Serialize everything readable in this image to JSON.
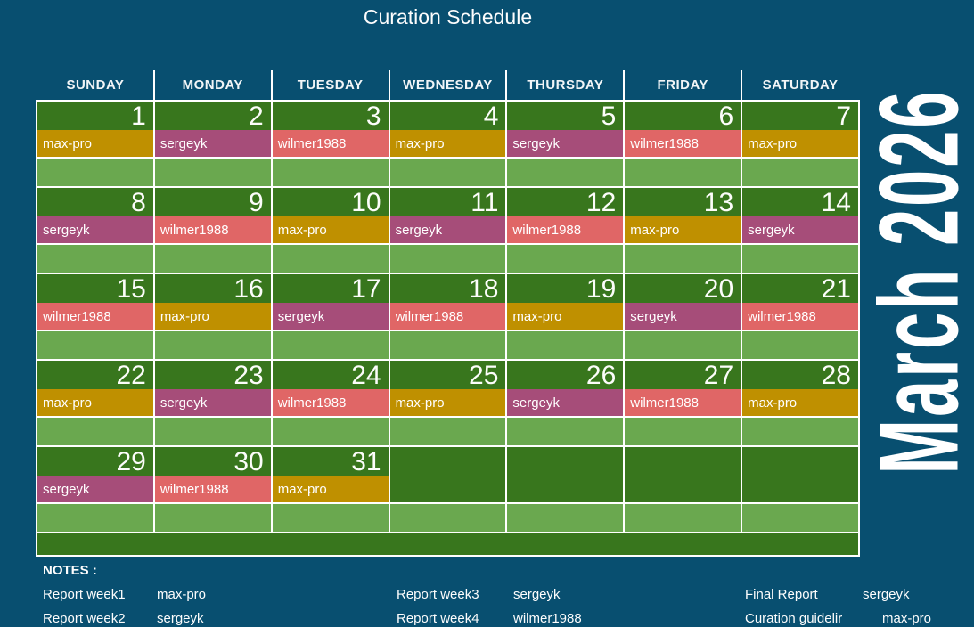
{
  "page": {
    "background": "#084f70",
    "title": "Curation Schedule"
  },
  "month_label": "March 2026",
  "weekday_headers": [
    "SUNDAY",
    "MONDAY",
    "TUESDAY",
    "WEDNESDAY",
    "THURSDAY",
    "FRIDAY",
    "SATURDAY"
  ],
  "people_colors": {
    "max-pro": "#bf9000",
    "sergeyk": "#a64d79",
    "wilmer1988": "#e06666"
  },
  "calendar_colors": {
    "day_cell": "#38761d",
    "empty_row": "#6aa84f",
    "grid_line": "#ffffff"
  },
  "weeks": [
    [
      {
        "day": "1",
        "assignee": "max-pro"
      },
      {
        "day": "2",
        "assignee": "sergeyk"
      },
      {
        "day": "3",
        "assignee": "wilmer1988"
      },
      {
        "day": "4",
        "assignee": "max-pro"
      },
      {
        "day": "5",
        "assignee": "sergeyk"
      },
      {
        "day": "6",
        "assignee": "wilmer1988"
      },
      {
        "day": "7",
        "assignee": "max-pro"
      }
    ],
    [
      {
        "day": "8",
        "assignee": "sergeyk"
      },
      {
        "day": "9",
        "assignee": "wilmer1988"
      },
      {
        "day": "10",
        "assignee": "max-pro"
      },
      {
        "day": "11",
        "assignee": "sergeyk"
      },
      {
        "day": "12",
        "assignee": "wilmer1988"
      },
      {
        "day": "13",
        "assignee": "max-pro"
      },
      {
        "day": "14",
        "assignee": "sergeyk"
      }
    ],
    [
      {
        "day": "15",
        "assignee": "wilmer1988"
      },
      {
        "day": "16",
        "assignee": "max-pro"
      },
      {
        "day": "17",
        "assignee": "sergeyk"
      },
      {
        "day": "18",
        "assignee": "wilmer1988"
      },
      {
        "day": "19",
        "assignee": "max-pro"
      },
      {
        "day": "20",
        "assignee": "sergeyk"
      },
      {
        "day": "21",
        "assignee": "wilmer1988"
      }
    ],
    [
      {
        "day": "22",
        "assignee": "max-pro"
      },
      {
        "day": "23",
        "assignee": "sergeyk"
      },
      {
        "day": "24",
        "assignee": "wilmer1988"
      },
      {
        "day": "25",
        "assignee": "max-pro"
      },
      {
        "day": "26",
        "assignee": "sergeyk"
      },
      {
        "day": "27",
        "assignee": "wilmer1988"
      },
      {
        "day": "28",
        "assignee": "max-pro"
      }
    ],
    [
      {
        "day": "29",
        "assignee": "sergeyk"
      },
      {
        "day": "30",
        "assignee": "wilmer1988"
      },
      {
        "day": "31",
        "assignee": "max-pro"
      },
      null,
      null,
      null,
      null
    ]
  ],
  "notes": {
    "heading": "NOTES :",
    "items": [
      {
        "label": "Report week1",
        "value": "max-pro"
      },
      {
        "label": "Report week2",
        "value": "sergeyk"
      },
      {
        "label": "Report week3",
        "value": "sergeyk"
      },
      {
        "label": "Report week4",
        "value": "wilmer1988"
      },
      {
        "label": "Final Report",
        "value": "sergeyk"
      },
      {
        "label": "Curation guidelir",
        "value": "max-pro"
      }
    ]
  }
}
